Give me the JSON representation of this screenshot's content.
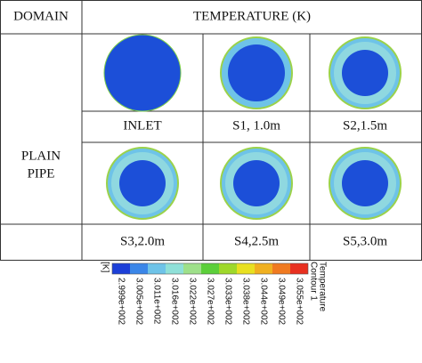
{
  "header": {
    "domain": "DOMAIN",
    "temperature": "TEMPERATURE (K)"
  },
  "domain_label": [
    "PLAIN",
    "PIPE"
  ],
  "sections": [
    "INLET",
    "S1, 1.0m",
    "S2,1.5m",
    "S3,2.0m",
    "S4,2.5m",
    "S5,3.0m"
  ],
  "legend": {
    "unit": "[K]",
    "title": [
      "Temperature",
      "Contour 1"
    ],
    "labels": [
      "2.999e+002",
      "3.005e+002",
      "3.011e+002",
      "3.016e+002",
      "3.022e+002",
      "3.027e+002",
      "3.033e+002",
      "3.038e+002",
      "3.044e+002",
      "3.049e+002",
      "3.055e+002"
    ]
  }
}
